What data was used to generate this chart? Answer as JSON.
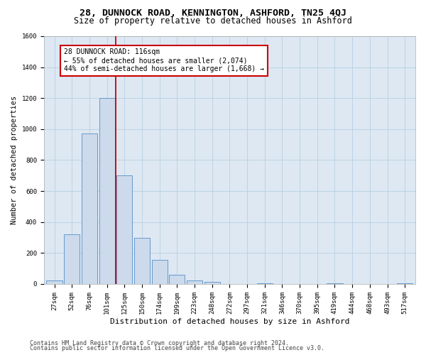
{
  "title1": "28, DUNNOCK ROAD, KENNINGTON, ASHFORD, TN25 4QJ",
  "title2": "Size of property relative to detached houses in Ashford",
  "xlabel": "Distribution of detached houses by size in Ashford",
  "ylabel": "Number of detached properties",
  "bar_labels": [
    "27sqm",
    "52sqm",
    "76sqm",
    "101sqm",
    "125sqm",
    "150sqm",
    "174sqm",
    "199sqm",
    "223sqm",
    "248sqm",
    "272sqm",
    "297sqm",
    "321sqm",
    "346sqm",
    "370sqm",
    "395sqm",
    "419sqm",
    "444sqm",
    "468sqm",
    "493sqm",
    "517sqm"
  ],
  "bar_values": [
    25,
    320,
    970,
    1200,
    700,
    300,
    155,
    60,
    25,
    15,
    0,
    0,
    5,
    0,
    0,
    0,
    5,
    0,
    0,
    0,
    5
  ],
  "bar_color": "#ccdaeb",
  "bar_edge_color": "#6699cc",
  "property_line_color": "#cc0000",
  "annotation_text": "28 DUNNOCK ROAD: 116sqm\n← 55% of detached houses are smaller (2,074)\n44% of semi-detached houses are larger (1,668) →",
  "annotation_box_color": "white",
  "annotation_box_edge_color": "#cc0000",
  "ylim": [
    0,
    1600
  ],
  "yticks": [
    0,
    200,
    400,
    600,
    800,
    1000,
    1200,
    1400,
    1600
  ],
  "grid_color": "#b8cfe0",
  "background_color": "#dde8f3",
  "footer1": "Contains HM Land Registry data © Crown copyright and database right 2024.",
  "footer2": "Contains public sector information licensed under the Open Government Licence v3.0.",
  "title1_fontsize": 9.5,
  "title2_fontsize": 8.5,
  "xlabel_fontsize": 8,
  "ylabel_fontsize": 7.5,
  "tick_fontsize": 6.5,
  "annotation_fontsize": 7,
  "footer_fontsize": 6
}
